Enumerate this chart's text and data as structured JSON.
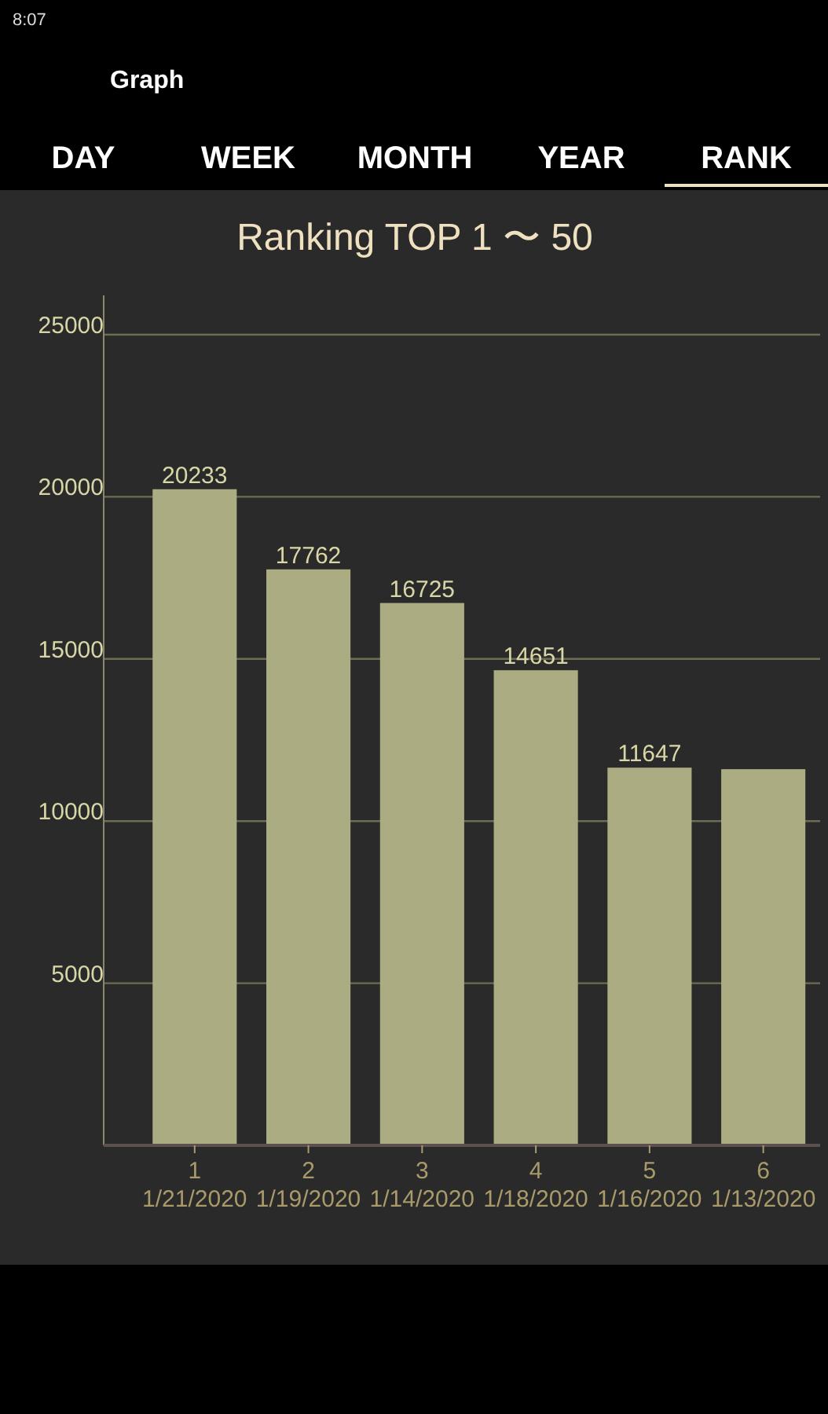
{
  "chart_data": {
    "type": "bar",
    "title": "Ranking TOP 1 〜 50",
    "categories": [
      "1 1/21/2020",
      "2 1/19/2020",
      "3 1/14/2020",
      "4 1/18/2020",
      "5 1/16/2020",
      "6 1/13/2020"
    ],
    "values": [
      20233,
      17762,
      16725,
      14651,
      11647,
      11600
    ],
    "value_labels": [
      "20233",
      "17762",
      "16725",
      "14651",
      "11647",
      null
    ],
    "color": "#acac82",
    "ylim": [
      0,
      25000
    ],
    "yticks": [
      5000,
      10000,
      15000,
      20000,
      25000
    ],
    "grid": "y",
    "legend": false,
    "annotations": [
      "8:07",
      "Graph",
      "DAY",
      "WEEK",
      "MONTH",
      "YEAR",
      "RANK"
    ]
  }
}
